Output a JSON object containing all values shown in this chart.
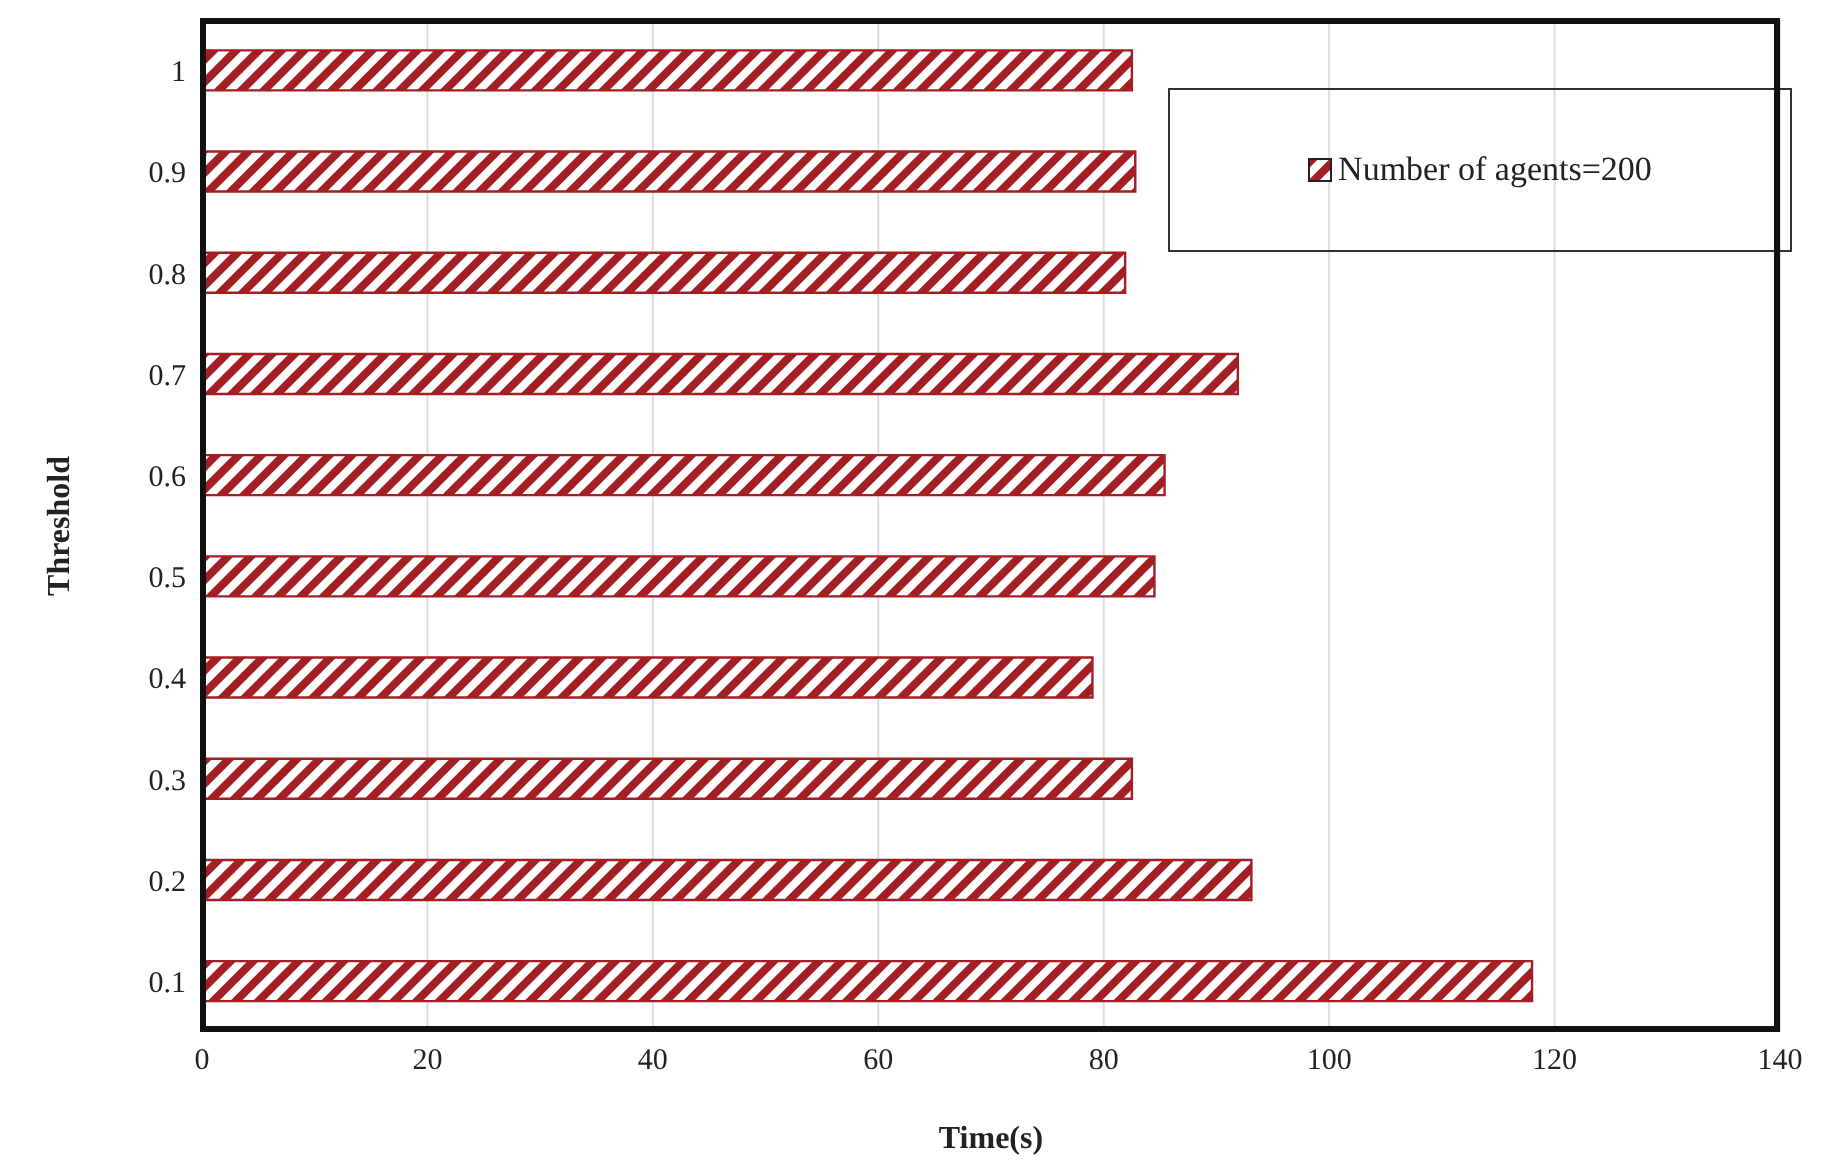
{
  "chart_data": {
    "type": "bar",
    "orientation": "horizontal",
    "xlabel": "Time(s)",
    "ylabel": "Threshold",
    "categories": [
      "1",
      "0.9",
      "0.8",
      "0.7",
      "0.6",
      "0.5",
      "0.4",
      "0.3",
      "0.2",
      "0.1"
    ],
    "series": [
      {
        "name": "Number of agents=200",
        "color": "#a31f24",
        "values": [
          82.5,
          82.8,
          81.9,
          91.9,
          85.4,
          84.5,
          79,
          82.5,
          93.1,
          118
        ]
      }
    ],
    "xlim": [
      0,
      140
    ],
    "xticks": [
      0,
      20,
      40,
      60,
      80,
      100,
      120,
      140
    ],
    "grid": "x",
    "legend": "top right"
  }
}
